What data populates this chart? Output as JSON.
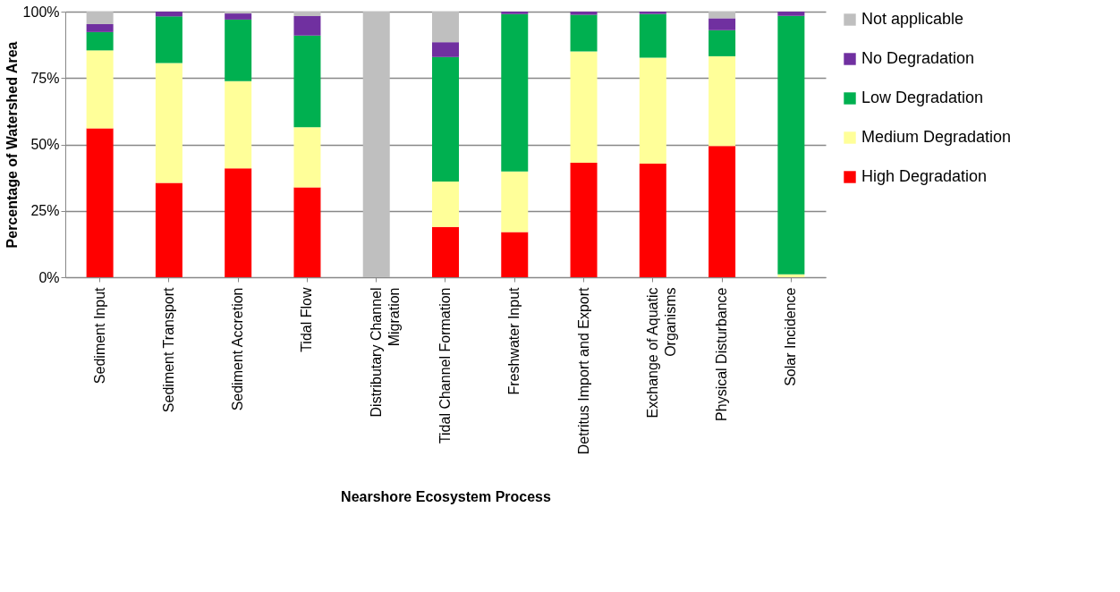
{
  "chart_data": {
    "type": "bar",
    "stacked": true,
    "xlabel": "Nearshore Ecosystem Process",
    "ylabel": "Percentage of Watershed Area",
    "categories": [
      "Sediment Input",
      "Sediment Transport",
      "Sediment Accretion",
      "Tidal Flow",
      "Distributary Channel Migration",
      "Tidal Channel Formation",
      "Freshwater Input",
      "Detritus Import and Export",
      "Exchange of Aquatic Organisms",
      "Physical Disturbance",
      "Solar Incidence"
    ],
    "series": [
      {
        "name": "High Degradation",
        "color": "#ff0000",
        "values": [
          56.1,
          35.5,
          41.0,
          33.8,
          0,
          18.9,
          17.0,
          43.1,
          42.8,
          49.4,
          0
        ]
      },
      {
        "name": "Medium Degradation",
        "color": "#ffff99",
        "values": [
          29.3,
          45.1,
          32.8,
          22.7,
          0,
          17.1,
          22.8,
          41.9,
          39.9,
          33.8,
          1.1
        ]
      },
      {
        "name": "Low Degradation",
        "color": "#00b050",
        "values": [
          6.9,
          17.6,
          23.2,
          34.5,
          0,
          46.9,
          59.3,
          13.8,
          16.4,
          9.8,
          97.3
        ]
      },
      {
        "name": "No Degradation",
        "color": "#7030a0",
        "values": [
          3.0,
          1.8,
          2.3,
          7.3,
          0,
          5.6,
          0.9,
          1.2,
          0.9,
          4.5,
          1.6
        ]
      },
      {
        "name": "Not applicable",
        "color": "#bfbfbf",
        "values": [
          4.7,
          0,
          0.7,
          1.7,
          100,
          11.5,
          0,
          0,
          0,
          2.5,
          0
        ]
      }
    ],
    "ylim": [
      0,
      100
    ],
    "yticks": [
      {
        "value": 0,
        "label": "0%"
      },
      {
        "value": 25,
        "label": "25%"
      },
      {
        "value": 50,
        "label": "50%"
      },
      {
        "value": 75,
        "label": "75%"
      },
      {
        "value": 100,
        "label": "100%"
      }
    ],
    "grid": "y",
    "legend": "right"
  }
}
